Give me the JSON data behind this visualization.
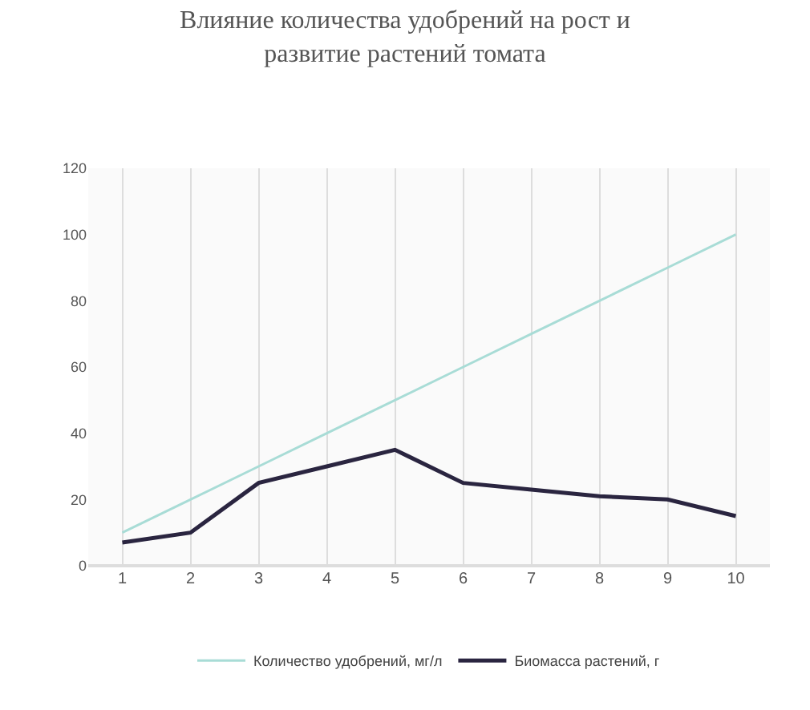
{
  "chart_data": {
    "type": "line",
    "title": "Влияние количества удобрений на рост и\nразвитие растений томата",
    "categories": [
      "1",
      "2",
      "3",
      "4",
      "5",
      "6",
      "7",
      "8",
      "9",
      "10"
    ],
    "series": [
      {
        "name": "Количество удобрений, мг/л",
        "color": "#a8dcd6",
        "values": [
          10,
          20,
          30,
          40,
          50,
          60,
          70,
          80,
          90,
          100
        ]
      },
      {
        "name": "Биомасса растений, г",
        "color": "#2a2540",
        "values": [
          7,
          10,
          25,
          30,
          35,
          25,
          23,
          21,
          20,
          15
        ]
      }
    ],
    "ylim": [
      0,
      120
    ],
    "yticks": [
      0,
      20,
      40,
      60,
      80,
      100,
      120
    ],
    "grid": "x",
    "legend": "bottom",
    "marker": "none",
    "line_style": "solid"
  }
}
